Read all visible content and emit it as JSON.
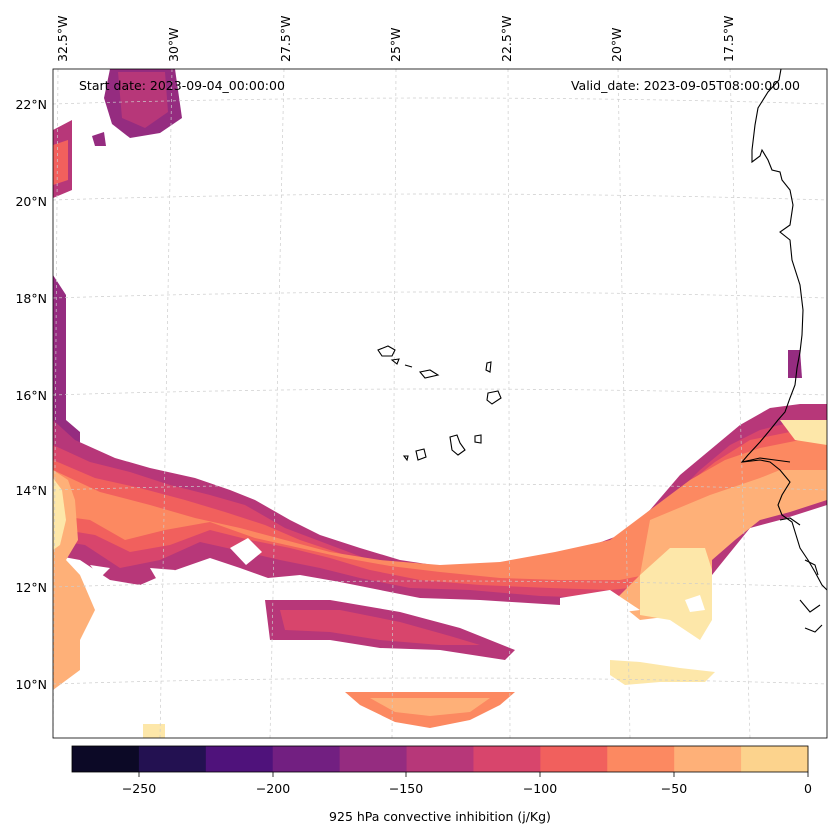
{
  "map": {
    "start_label": "Start date: 2023-09-04_00:00:00",
    "valid_label": "Valid_date: 2023-09-05T08:00:00.00",
    "lon_labels": [
      "32.5°W",
      "30°W",
      "27.5°W",
      "25°W",
      "22.5°W",
      "20°W",
      "17.5°W"
    ],
    "lat_labels": [
      "22°N",
      "20°N",
      "18°N",
      "16°N",
      "14°N",
      "12°N",
      "10°N"
    ],
    "gridlines": "dashed light gray",
    "coastline_color": "#000000"
  },
  "colorbar": {
    "label": "925 hPa convective inhibition (j/Kg)",
    "ticks": [
      "−250",
      "−200",
      "−150",
      "−100",
      "−50",
      "0"
    ],
    "levels": [
      -275,
      -250,
      -225,
      -200,
      -175,
      -150,
      -125,
      -100,
      -75,
      -50,
      -25,
      0
    ],
    "colormap": "magma",
    "colors": [
      "#0c0926",
      "#231151",
      "#4f127b",
      "#721f81",
      "#952c80",
      "#b73779",
      "#d8456c",
      "#f1605d",
      "#fc8961",
      "#feb078",
      "#fcd38d",
      "#fde7a9"
    ]
  }
}
